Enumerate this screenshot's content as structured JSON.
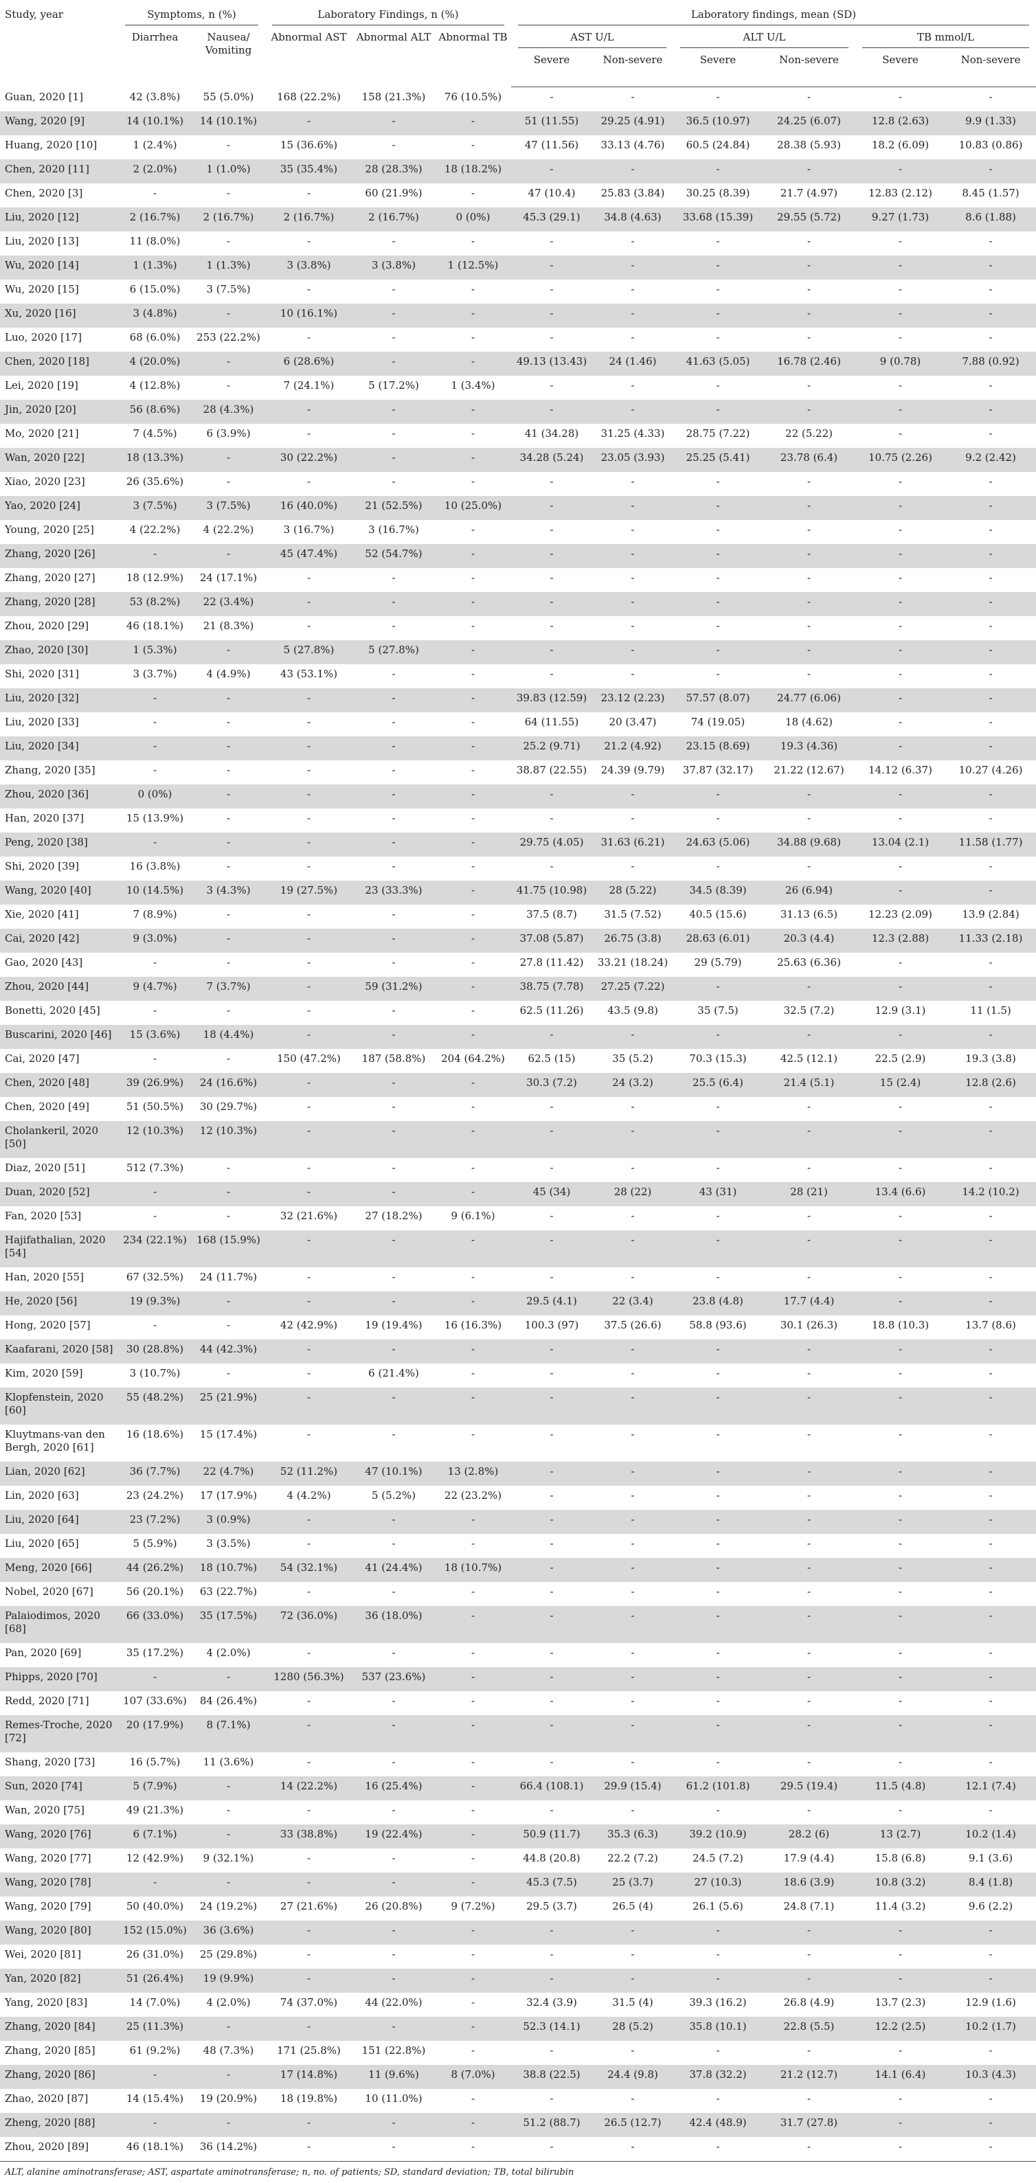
{
  "table": {
    "header": {
      "study_year": "Study, year",
      "symptoms_group": "Symptoms, n (%)",
      "lab_findings_group": "Laboratory Findings, n (%)",
      "lab_mean_group": "Laboratory findings, mean (SD)",
      "diarrhea": "Diarrhea",
      "nausea_vomiting": "Nausea/ Vomiting",
      "abnormal_ast": "Abnormal AST",
      "abnormal_alt": "Abnormal ALT",
      "abnormal_tb": "Abnormal TB",
      "ast_unit": "AST U/L",
      "alt_unit": "ALT U/L",
      "tb_unit": "TB mmol/L",
      "severe": "Severe",
      "non_severe": "Non-severe"
    },
    "rows": [
      [
        "Guan, 2020 [1]",
        "42 (3.8%)",
        "55 (5.0%)",
        "168 (22.2%)",
        "158 (21.3%)",
        "76 (10.5%)",
        "-",
        "-",
        "-",
        "-",
        "-",
        "-"
      ],
      [
        "Wang, 2020 [9]",
        "14 (10.1%)",
        "14 (10.1%)",
        "-",
        "-",
        "-",
        "51 (11.55)",
        "29.25 (4.91)",
        "36.5 (10.97)",
        "24.25 (6.07)",
        "12.8 (2.63)",
        "9.9 (1.33)"
      ],
      [
        "Huang, 2020 [10]",
        "1 (2.4%)",
        "-",
        "15 (36.6%)",
        "-",
        "-",
        "47 (11.56)",
        "33.13 (4.76)",
        "60.5 (24.84)",
        "28.38 (5.93)",
        "18.2 (6.09)",
        "10.83 (0.86)"
      ],
      [
        "Chen, 2020 [11]",
        "2 (2.0%)",
        "1 (1.0%)",
        "35 (35.4%)",
        "28 (28.3%)",
        "18 (18.2%)",
        "-",
        "-",
        "-",
        "-",
        "-",
        "-"
      ],
      [
        "Chen, 2020 [3]",
        "-",
        "-",
        "-",
        "60 (21.9%)",
        "-",
        "47 (10.4)",
        "25.83 (3.84)",
        "30.25 (8.39)",
        "21.7 (4.97)",
        "12.83 (2.12)",
        "8.45 (1.57)"
      ],
      [
        "Liu, 2020 [12]",
        "2 (16.7%)",
        "2 (16.7%)",
        "2 (16.7%)",
        "2 (16.7%)",
        "0 (0%)",
        "45.3 (29.1)",
        "34.8 (4.63)",
        "33.68 (15.39)",
        "29.55 (5.72)",
        "9.27 (1.73)",
        "8.6 (1.88)"
      ],
      [
        "Liu, 2020 [13]",
        "11 (8.0%)",
        "-",
        "-",
        "-",
        "-",
        "-",
        "-",
        "-",
        "-",
        "-",
        "-"
      ],
      [
        "Wu, 2020 [14]",
        "1 (1.3%)",
        "1 (1.3%)",
        "3 (3.8%)",
        "3 (3.8%)",
        "1 (12.5%)",
        "-",
        "-",
        "-",
        "-",
        "-",
        "-"
      ],
      [
        "Wu, 2020 [15]",
        "6 (15.0%)",
        "3 (7.5%)",
        "-",
        "-",
        "-",
        "-",
        "-",
        "-",
        "-",
        "-",
        "-"
      ],
      [
        "Xu, 2020 [16]",
        "3 (4.8%)",
        "-",
        "10 (16.1%)",
        "-",
        "-",
        "-",
        "-",
        "-",
        "-",
        "-",
        "-"
      ],
      [
        "Luo, 2020 [17]",
        "68 (6.0%)",
        "253 (22.2%)",
        "-",
        "-",
        "-",
        "-",
        "-",
        "-",
        "-",
        "-",
        "-"
      ],
      [
        "Chen, 2020 [18]",
        "4 (20.0%)",
        "-",
        "6 (28.6%)",
        "-",
        "-",
        "49.13 (13.43)",
        "24 (1.46)",
        "41.63 (5.05)",
        "16.78 (2.46)",
        "9 (0.78)",
        "7.88 (0.92)"
      ],
      [
        "Lei, 2020 [19]",
        "4 (12.8%)",
        "-",
        "7 (24.1%)",
        "5 (17.2%)",
        "1 (3.4%)",
        "-",
        "-",
        "-",
        "-",
        "-",
        "-"
      ],
      [
        "Jin, 2020 [20]",
        "56 (8.6%)",
        "28 (4.3%)",
        "-",
        "-",
        "-",
        "-",
        "-",
        "-",
        "-",
        "-",
        "-"
      ],
      [
        "Mo, 2020 [21]",
        "7 (4.5%)",
        "6 (3.9%)",
        "-",
        "-",
        "-",
        "41 (34.28)",
        "31.25 (4.33)",
        "28.75 (7.22)",
        "22 (5.22)",
        "-",
        "-"
      ],
      [
        "Wan, 2020 [22]",
        "18 (13.3%)",
        "-",
        "30 (22.2%)",
        "-",
        "-",
        "34.28 (5.24)",
        "23.05 (3.93)",
        "25.25 (5.41)",
        "23.78 (6.4)",
        "10.75 (2.26)",
        "9.2 (2.42)"
      ],
      [
        "Xiao, 2020 [23]",
        "26 (35.6%)",
        "-",
        "-",
        "-",
        "-",
        "-",
        "-",
        "-",
        "-",
        "-",
        "-"
      ],
      [
        "Yao, 2020 [24]",
        "3 (7.5%)",
        "3 (7.5%)",
        "16 (40.0%)",
        "21 (52.5%)",
        "10 (25.0%)",
        "-",
        "-",
        "-",
        "-",
        "-",
        "-"
      ],
      [
        "Young, 2020 [25]",
        "4 (22.2%)",
        "4 (22.2%)",
        "3 (16.7%)",
        "3 (16.7%)",
        "-",
        "-",
        "-",
        "-",
        "-",
        "-",
        "-"
      ],
      [
        "Zhang, 2020 [26]",
        "-",
        "-",
        "45 (47.4%)",
        "52 (54.7%)",
        "-",
        "-",
        "-",
        "-",
        "-",
        "-",
        "-"
      ],
      [
        "Zhang, 2020 [27]",
        "18 (12.9%)",
        "24 (17.1%)",
        "-",
        "-",
        "-",
        "-",
        "-",
        "-",
        "-",
        "-",
        "-"
      ],
      [
        "Zhang, 2020 [28]",
        "53 (8.2%)",
        "22 (3.4%)",
        "-",
        "-",
        "-",
        "-",
        "-",
        "-",
        "-",
        "-",
        "-"
      ],
      [
        "Zhou, 2020 [29]",
        "46 (18.1%)",
        "21 (8.3%)",
        "-",
        "-",
        "-",
        "-",
        "-",
        "-",
        "-",
        "-",
        "-"
      ],
      [
        "Zhao, 2020 [30]",
        "1 (5.3%)",
        "-",
        "5 (27.8%)",
        "5 (27.8%)",
        "-",
        "-",
        "-",
        "-",
        "-",
        "-",
        "-"
      ],
      [
        "Shi, 2020 [31]",
        "3 (3.7%)",
        "4 (4.9%)",
        "43 (53.1%)",
        "-",
        "-",
        "-",
        "-",
        "-",
        "-",
        "-",
        "-"
      ],
      [
        "Liu, 2020 [32]",
        "-",
        "-",
        "-",
        "-",
        "-",
        "39.83 (12.59)",
        "23.12 (2.23)",
        "57.57 (8.07)",
        "24.77 (6.06)",
        "-",
        "-"
      ],
      [
        "Liu, 2020 [33]",
        "-",
        "-",
        "-",
        "-",
        "-",
        "64 (11.55)",
        "20 (3.47)",
        "74 (19.05)",
        "18 (4.62)",
        "-",
        "-"
      ],
      [
        "Liu, 2020 [34]",
        "-",
        "-",
        "-",
        "-",
        "-",
        "25.2 (9.71)",
        "21.2 (4.92)",
        "23.15 (8.69)",
        "19.3 (4.36)",
        "-",
        "-"
      ],
      [
        "Zhang, 2020 [35]",
        "-",
        "-",
        "-",
        "-",
        "-",
        "38.87 (22.55)",
        "24.39 (9.79)",
        "37.87 (32.17)",
        "21.22 (12.67)",
        "14.12 (6.37)",
        "10.27 (4.26)"
      ],
      [
        "Zhou, 2020 [36]",
        "0 (0%)",
        "-",
        "-",
        "-",
        "-",
        "-",
        "-",
        "-",
        "-",
        "-",
        "-"
      ],
      [
        "Han, 2020 [37]",
        "15 (13.9%)",
        "-",
        "-",
        "-",
        "-",
        "-",
        "-",
        "-",
        "-",
        "-",
        "-"
      ],
      [
        "Peng, 2020 [38]",
        "-",
        "-",
        "-",
        "-",
        "-",
        "29.75 (4.05)",
        "31.63 (6.21)",
        "24.63 (5.06)",
        "34.88 (9.68)",
        "13.04 (2.1)",
        "11.58 (1.77)"
      ],
      [
        "Shi, 2020 [39]",
        "16 (3.8%)",
        "-",
        "-",
        "-",
        "-",
        "-",
        "-",
        "-",
        "-",
        "-",
        "-"
      ],
      [
        "Wang, 2020 [40]",
        "10 (14.5%)",
        "3 (4.3%)",
        "19 (27.5%)",
        "23 (33.3%)",
        "-",
        "41.75 (10.98)",
        "28 (5.22)",
        "34.5 (8.39)",
        "26 (6.94)",
        "-",
        "-"
      ],
      [
        "Xie, 2020 [41]",
        "7 (8.9%)",
        "-",
        "-",
        "-",
        "-",
        "37.5 (8.7)",
        "31.5 (7.52)",
        "40.5 (15.6)",
        "31.13 (6.5)",
        "12.23 (2.09)",
        "13.9 (2.84)"
      ],
      [
        "Cai, 2020 [42]",
        "9 (3.0%)",
        "-",
        "-",
        "-",
        "-",
        "37.08 (5.87)",
        "26.75 (3.8)",
        "28.63 (6.01)",
        "20.3 (4.4)",
        "12.3 (2.88)",
        "11.33 (2.18)"
      ],
      [
        "Gao, 2020 [43]",
        "-",
        "-",
        "-",
        "-",
        "-",
        "27.8 (11.42)",
        "33.21 (18.24)",
        "29 (5.79)",
        "25.63 (6.36)",
        "-",
        "-"
      ],
      [
        "Zhou, 2020 [44]",
        "9 (4.7%)",
        "7 (3.7%)",
        "-",
        "59 (31.2%)",
        "-",
        "38.75 (7.78)",
        "27.25 (7.22)",
        "-",
        "-",
        "-",
        "-"
      ],
      [
        "Bonetti, 2020 [45]",
        "-",
        "-",
        "-",
        "-",
        "-",
        "62.5 (11.26)",
        "43.5 (9.8)",
        "35 (7.5)",
        "32.5 (7.2)",
        "12.9 (3.1)",
        "11 (1.5)"
      ],
      [
        "Buscarini, 2020 [46]",
        "15 (3.6%)",
        "18 (4.4%)",
        "-",
        "-",
        "-",
        "-",
        "-",
        "-",
        "-",
        "-",
        "-"
      ],
      [
        "Cai, 2020 [47]",
        "-",
        "-",
        "150 (47.2%)",
        "187 (58.8%)",
        "204 (64.2%)",
        "62.5 (15)",
        "35 (5.2)",
        "70.3 (15.3)",
        "42.5 (12.1)",
        "22.5 (2.9)",
        "19.3 (3.8)"
      ],
      [
        "Chen, 2020 [48]",
        "39 (26.9%)",
        "24 (16.6%)",
        "-",
        "-",
        "-",
        "30.3 (7.2)",
        "24 (3.2)",
        "25.5 (6.4)",
        "21.4 (5.1)",
        "15 (2.4)",
        "12.8 (2.6)"
      ],
      [
        "Chen, 2020 [49]",
        "51 (50.5%)",
        "30 (29.7%)",
        "-",
        "-",
        "-",
        "-",
        "-",
        "-",
        "-",
        "-",
        "-"
      ],
      [
        "Cholankeril, 2020 [50]",
        "12 (10.3%)",
        "12 (10.3%)",
        "-",
        "-",
        "-",
        "-",
        "-",
        "-",
        "-",
        "-",
        "-"
      ],
      [
        "Diaz, 2020 [51]",
        "512 (7.3%)",
        "-",
        "-",
        "-",
        "-",
        "-",
        "-",
        "-",
        "-",
        "-",
        "-"
      ],
      [
        "Duan, 2020 [52]",
        "-",
        "-",
        "-",
        "-",
        "-",
        "45 (34)",
        "28 (22)",
        "43 (31)",
        "28 (21)",
        "13.4 (6.6)",
        "14.2 (10.2)"
      ],
      [
        "Fan, 2020 [53]",
        "-",
        "-",
        "32 (21.6%)",
        "27 (18.2%)",
        "9 (6.1%)",
        "-",
        "-",
        "-",
        "-",
        "-",
        "-"
      ],
      [
        "Hajifathalian, 2020 [54]",
        "234 (22.1%)",
        "168 (15.9%)",
        "-",
        "-",
        "-",
        "-",
        "-",
        "-",
        "-",
        "-",
        "-"
      ],
      [
        "Han, 2020 [55]",
        "67 (32.5%)",
        "24 (11.7%)",
        "-",
        "-",
        "-",
        "-",
        "-",
        "-",
        "-",
        "-",
        "-"
      ],
      [
        "He, 2020 [56]",
        "19 (9.3%)",
        "-",
        "-",
        "-",
        "-",
        "29.5 (4.1)",
        "22 (3.4)",
        "23.8 (4.8)",
        "17.7 (4.4)",
        "-",
        "-"
      ],
      [
        "Hong, 2020 [57]",
        "-",
        "-",
        "42 (42.9%)",
        "19 (19.4%)",
        "16 (16.3%)",
        "100.3 (97)",
        "37.5 (26.6)",
        "58.8 (93.6)",
        "30.1 (26.3)",
        "18.8 (10.3)",
        "13.7 (8.6)"
      ],
      [
        "Kaafarani, 2020 [58]",
        "30 (28.8%)",
        "44 (42.3%)",
        "-",
        "-",
        "-",
        "-",
        "-",
        "-",
        "-",
        "-",
        "-"
      ],
      [
        "Kim, 2020 [59]",
        "3 (10.7%)",
        "-",
        "-",
        "6 (21.4%)",
        "-",
        "-",
        "-",
        "-",
        "-",
        "-",
        "-"
      ],
      [
        "Klopfenstein, 2020 [60]",
        "55 (48.2%)",
        "25 (21.9%)",
        "-",
        "-",
        "-",
        "-",
        "-",
        "-",
        "-",
        "-",
        "-"
      ],
      [
        "Kluytmans-van den Bergh, 2020 [61]",
        "16 (18.6%)",
        "15 (17.4%)",
        "-",
        "-",
        "-",
        "-",
        "-",
        "-",
        "-",
        "-",
        "-"
      ],
      [
        "Lian, 2020 [62]",
        "36 (7.7%)",
        "22 (4.7%)",
        "52 (11.2%)",
        "47 (10.1%)",
        "13 (2.8%)",
        "-",
        "-",
        "-",
        "-",
        "-",
        "-"
      ],
      [
        "Lin, 2020 [63]",
        "23 (24.2%)",
        "17 (17.9%)",
        "4 (4.2%)",
        "5 (5.2%)",
        "22 (23.2%)",
        "-",
        "-",
        "-",
        "-",
        "-",
        "-"
      ],
      [
        "Liu, 2020 [64]",
        "23 (7.2%)",
        "3 (0.9%)",
        "-",
        "-",
        "-",
        "-",
        "-",
        "-",
        "-",
        "-",
        "-"
      ],
      [
        "Liu, 2020 [65]",
        "5 (5.9%)",
        "3 (3.5%)",
        "-",
        "-",
        "-",
        "-",
        "-",
        "-",
        "-",
        "-",
        "-"
      ],
      [
        "Meng, 2020 [66]",
        "44 (26.2%)",
        "18 (10.7%)",
        "54 (32.1%)",
        "41 (24.4%)",
        "18 (10.7%)",
        "-",
        "-",
        "-",
        "-",
        "-",
        "-"
      ],
      [
        "Nobel, 2020 [67]",
        "56 (20.1%)",
        "63 (22.7%)",
        "-",
        "-",
        "-",
        "-",
        "-",
        "-",
        "-",
        "-",
        "-"
      ],
      [
        "Palaiodimos, 2020 [68]",
        "66 (33.0%)",
        "35 (17.5%)",
        "72 (36.0%)",
        "36 (18.0%)",
        "-",
        "-",
        "-",
        "-",
        "-",
        "-",
        "-"
      ],
      [
        "Pan, 2020 [69]",
        "35 (17.2%)",
        "4 (2.0%)",
        "-",
        "-",
        "-",
        "-",
        "-",
        "-",
        "-",
        "-",
        "-"
      ],
      [
        "Phipps, 2020 [70]",
        "-",
        "-",
        "1280 (56.3%)",
        "537 (23.6%)",
        "-",
        "-",
        "-",
        "-",
        "-",
        "-",
        "-"
      ],
      [
        "Redd, 2020 [71]",
        "107 (33.6%)",
        "84 (26.4%)",
        "-",
        "-",
        "-",
        "-",
        "-",
        "-",
        "-",
        "-",
        "-"
      ],
      [
        "Remes-Troche, 2020 [72]",
        "20 (17.9%)",
        "8 (7.1%)",
        "-",
        "-",
        "-",
        "-",
        "-",
        "-",
        "-",
        "-",
        "-"
      ],
      [
        "Shang, 2020 [73]",
        "16 (5.7%)",
        "11 (3.6%)",
        "-",
        "-",
        "-",
        "-",
        "-",
        "-",
        "-",
        "-",
        "-"
      ],
      [
        "Sun, 2020 [74]",
        "5 (7.9%)",
        "-",
        "14 (22.2%)",
        "16 (25.4%)",
        "-",
        "66.4 (108.1)",
        "29.9 (15.4)",
        "61.2 (101.8)",
        "29.5 (19.4)",
        "11.5 (4.8)",
        "12.1 (7.4)"
      ],
      [
        "Wan, 2020 [75]",
        "49 (21.3%)",
        "-",
        "-",
        "-",
        "-",
        "-",
        "-",
        "-",
        "-",
        "-",
        "-"
      ],
      [
        "Wang, 2020 [76]",
        "6 (7.1%)",
        "-",
        "33 (38.8%)",
        "19 (22.4%)",
        "-",
        "50.9 (11.7)",
        "35.3 (6.3)",
        "39.2 (10.9)",
        "28.2 (6)",
        "13 (2.7)",
        "10.2 (1.4)"
      ],
      [
        "Wang, 2020 [77]",
        "12 (42.9%)",
        "9 (32.1%)",
        "-",
        "-",
        "-",
        "44.8 (20.8)",
        "22.2 (7.2)",
        "24.5 (7.2)",
        "17.9 (4.4)",
        "15.8 (6.8)",
        "9.1 (3.6)"
      ],
      [
        "Wang, 2020 [78]",
        "-",
        "-",
        "-",
        "-",
        "-",
        "45.3 (7.5)",
        "25 (3.7)",
        "27 (10.3)",
        "18.6 (3.9)",
        "10.8 (3.2)",
        "8.4 (1.8)"
      ],
      [
        "Wang, 2020 [79]",
        "50 (40.0%)",
        "24 (19.2%)",
        "27 (21.6%)",
        "26 (20.8%)",
        "9 (7.2%)",
        "29.5 (3.7)",
        "26.5 (4)",
        "26.1 (5.6)",
        "24.8 (7.1)",
        "11.4 (3.2)",
        "9.6 (2.2)"
      ],
      [
        "Wang, 2020 [80]",
        "152 (15.0%)",
        "36 (3.6%)",
        "-",
        "-",
        "-",
        "-",
        "-",
        "-",
        "-",
        "-",
        "-"
      ],
      [
        "Wei, 2020 [81]",
        "26 (31.0%)",
        "25 (29.8%)",
        "-",
        "-",
        "-",
        "-",
        "-",
        "-",
        "-",
        "-",
        "-"
      ],
      [
        "Yan, 2020 [82]",
        "51 (26.4%)",
        "19 (9.9%)",
        "-",
        "-",
        "-",
        "-",
        "-",
        "-",
        "-",
        "-",
        "-"
      ],
      [
        "Yang, 2020 [83]",
        "14 (7.0%)",
        "4 (2.0%)",
        "74 (37.0%)",
        "44 (22.0%)",
        "-",
        "32.4 (3.9)",
        "31.5 (4)",
        "39.3 (16.2)",
        "26.8 (4.9)",
        "13.7 (2.3)",
        "12.9 (1.6)"
      ],
      [
        "Zhang, 2020 [84]",
        "25 (11.3%)",
        "-",
        "-",
        "-",
        "-",
        "52.3 (14.1)",
        "28 (5.2)",
        "35.8 (10.1)",
        "22.8 (5.5)",
        "12.2 (2.5)",
        "10.2 (1.7)"
      ],
      [
        "Zhang, 2020 [85]",
        "61 (9.2%)",
        "48 (7.3%)",
        "171 (25.8%)",
        "151 (22.8%)",
        "-",
        "-",
        "-",
        "-",
        "-",
        "-",
        "-"
      ],
      [
        "Zhang, 2020 [86]",
        "-",
        "-",
        "17 (14.8%)",
        "11 (9.6%)",
        "8 (7.0%)",
        "38.8 (22.5)",
        "24.4 (9.8)",
        "37.8 (32.2)",
        "21.2 (12.7)",
        "14.1 (6.4)",
        "10.3 (4.3)"
      ],
      [
        "Zhao, 2020 [87]",
        "14 (15.4%)",
        "19 (20.9%)",
        "18 (19.8%)",
        "10 (11.0%)",
        "-",
        "-",
        "-",
        "-",
        "-",
        "-",
        "-"
      ],
      [
        "Zheng, 2020 [88]",
        "-",
        "-",
        "-",
        "-",
        "-",
        "51.2 (88.7)",
        "26.5 (12.7)",
        "42.4 (48.9)",
        "31.7 (27.8)",
        "-",
        "-"
      ],
      [
        "Zhou, 2020 [89]",
        "46 (18.1%)",
        "36 (14.2%)",
        "-",
        "-",
        "-",
        "-",
        "-",
        "-",
        "-",
        "-",
        "-"
      ]
    ],
    "footnote": "ALT, alanine aminotransferase; AST, aspartate aminotransferase; n, no. of patients; SD, standard deviation; TB, total bilirubin"
  }
}
